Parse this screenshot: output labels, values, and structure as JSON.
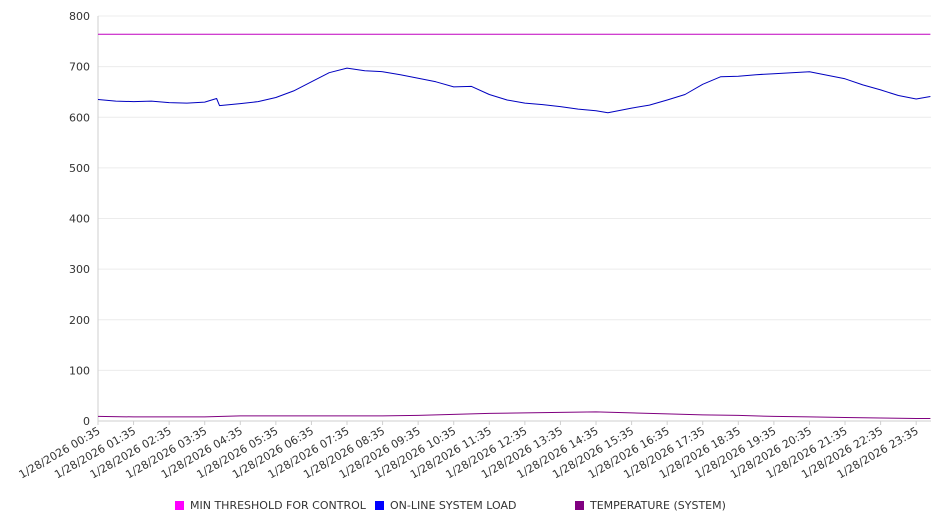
{
  "chart_data": {
    "type": "line",
    "title": "",
    "xlabel": "",
    "ylabel": "",
    "ylim": [
      0,
      800
    ],
    "yticks": [
      0,
      100,
      200,
      300,
      400,
      500,
      600,
      700,
      800
    ],
    "x_tick_labels": [
      "1/28/2026 00:35",
      "1/28/2026 01:35",
      "1/28/2026 02:35",
      "1/28/2026 03:35",
      "1/28/2026 04:35",
      "1/28/2026 05:35",
      "1/28/2026 06:35",
      "1/28/2026 07:35",
      "1/28/2026 08:35",
      "1/28/2026 09:35",
      "1/28/2026 10:35",
      "1/28/2026 11:35",
      "1/28/2026 12:35",
      "1/28/2026 13:35",
      "1/28/2026 14:35",
      "1/28/2026 15:35",
      "1/28/2026 16:35",
      "1/28/2026 17:35",
      "1/28/2026 18:35",
      "1/28/2026 19:35",
      "1/28/2026 20:35",
      "1/28/2026 21:35",
      "1/28/2026 22:35",
      "1/28/2026 23:35"
    ],
    "grid": true,
    "legend_position": "bottom",
    "series": [
      {
        "name": "MIN THRESHOLD FOR CONTROL",
        "color": "#c000c0",
        "legend_color": "#ff00ff",
        "x": [
          "1/28/2026 00:35",
          "1/28/2026 23:59"
        ],
        "values": [
          764,
          764
        ]
      },
      {
        "name": "ON-LINE SYSTEM LOAD",
        "color": "#0000c0",
        "legend_color": "#0000ff",
        "x": [
          "1/28/2026 00:35",
          "1/28/2026 01:05",
          "1/28/2026 01:35",
          "1/28/2026 02:05",
          "1/28/2026 02:35",
          "1/28/2026 03:05",
          "1/28/2026 03:35",
          "1/28/2026 03:55",
          "1/28/2026 04:00",
          "1/28/2026 04:35",
          "1/28/2026 05:05",
          "1/28/2026 05:35",
          "1/28/2026 06:05",
          "1/28/2026 06:35",
          "1/28/2026 07:05",
          "1/28/2026 07:35",
          "1/28/2026 08:05",
          "1/28/2026 08:35",
          "1/28/2026 09:05",
          "1/28/2026 09:35",
          "1/28/2026 10:05",
          "1/28/2026 10:35",
          "1/28/2026 11:05",
          "1/28/2026 11:35",
          "1/28/2026 12:05",
          "1/28/2026 12:35",
          "1/28/2026 13:05",
          "1/28/2026 13:35",
          "1/28/2026 14:05",
          "1/28/2026 14:35",
          "1/28/2026 14:55",
          "1/28/2026 15:35",
          "1/28/2026 16:05",
          "1/28/2026 16:35",
          "1/28/2026 17:05",
          "1/28/2026 17:35",
          "1/28/2026 18:05",
          "1/28/2026 18:35",
          "1/28/2026 19:05",
          "1/28/2026 19:35",
          "1/28/2026 20:05",
          "1/28/2026 20:35",
          "1/28/2026 21:05",
          "1/28/2026 21:35",
          "1/28/2026 22:05",
          "1/28/2026 22:35",
          "1/28/2026 23:05",
          "1/28/2026 23:35",
          "1/28/2026 23:59"
        ],
        "values": [
          635,
          632,
          631,
          632,
          629,
          628,
          630,
          637,
          623,
          627,
          631,
          639,
          652,
          670,
          688,
          697,
          692,
          690,
          684,
          677,
          670,
          660,
          661,
          645,
          634,
          628,
          625,
          621,
          616,
          613,
          609,
          618,
          624,
          634,
          645,
          665,
          680,
          681,
          684,
          686,
          688,
          690,
          683,
          676,
          664,
          654,
          643,
          636,
          641
        ]
      },
      {
        "name": "TEMPERATURE (SYSTEM)",
        "color": "#800080",
        "legend_color": "#800080",
        "x": [
          "1/28/2026 00:35",
          "1/28/2026 01:35",
          "1/28/2026 02:35",
          "1/28/2026 03:35",
          "1/28/2026 04:35",
          "1/28/2026 05:35",
          "1/28/2026 06:35",
          "1/28/2026 07:35",
          "1/28/2026 08:35",
          "1/28/2026 09:35",
          "1/28/2026 10:35",
          "1/28/2026 11:35",
          "1/28/2026 12:35",
          "1/28/2026 13:35",
          "1/28/2026 14:35",
          "1/28/2026 15:35",
          "1/28/2026 16:35",
          "1/28/2026 17:35",
          "1/28/2026 18:35",
          "1/28/2026 19:35",
          "1/28/2026 20:35",
          "1/28/2026 21:35",
          "1/28/2026 22:35",
          "1/28/2026 23:35",
          "1/28/2026 23:59"
        ],
        "values": [
          9,
          8,
          8,
          8,
          10,
          10,
          10,
          10,
          10,
          11,
          13,
          15,
          16,
          17,
          18,
          16,
          14,
          12,
          11,
          9,
          8,
          7,
          6,
          5,
          5
        ]
      }
    ]
  }
}
